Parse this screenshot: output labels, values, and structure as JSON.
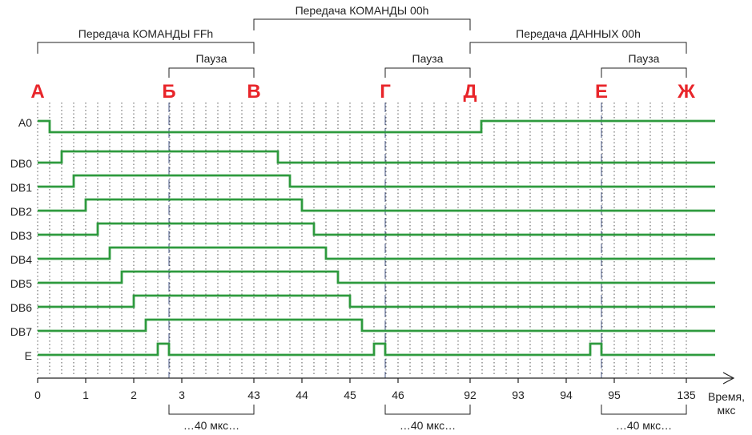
{
  "top_brackets": [
    {
      "label": "Передача КОМАНДЫ FFh"
    },
    {
      "label": "Передача КОМАНДЫ 00h"
    },
    {
      "label": "Передача ДАННЫХ 00h"
    }
  ],
  "pause_label": "Пауза",
  "phase_letters": [
    "А",
    "Б",
    "В",
    "Г",
    "Д",
    "Е",
    "Ж"
  ],
  "signal_names": [
    "A0",
    "DB0",
    "DB1",
    "DB2",
    "DB3",
    "DB4",
    "DB5",
    "DB6",
    "DB7",
    "E"
  ],
  "axis": {
    "tick_labels": [
      "0",
      "1",
      "2",
      "3",
      "43",
      "44",
      "45",
      "46",
      "92",
      "93",
      "94",
      "95",
      "135"
    ],
    "title_line1": "Время,",
    "title_line2": "мкс"
  },
  "pause_duration_label": "…40 мкс…",
  "colors": {
    "signal": "#2e9a3e",
    "letters": "#e8252a",
    "text": "#222222"
  }
}
